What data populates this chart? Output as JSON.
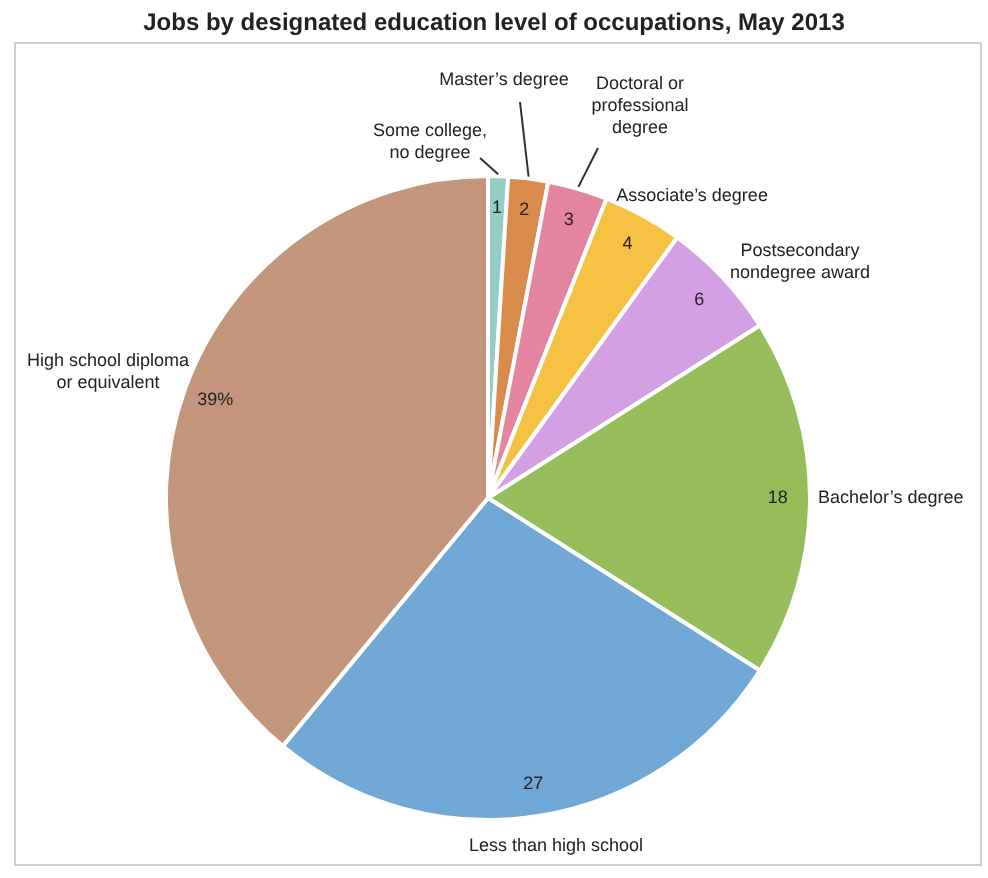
{
  "chart_data": {
    "type": "pie",
    "title": "Jobs by designated education level of occupations, May 2013",
    "categories": [
      "Some college, no degree",
      "Master’s degree",
      "Doctoral or professional degree",
      "Associate’s degree",
      "Postsecondary nondegree award",
      "Bachelor’s degree",
      "Less than high school",
      "High school diploma or equivalent"
    ],
    "values": [
      1,
      2,
      3,
      4,
      6,
      18,
      27,
      39
    ],
    "colors": [
      "#93cdc6",
      "#d98b4b",
      "#e384a0",
      "#f6c244",
      "#d59fe3",
      "#97bd5b",
      "#6fa8d4",
      "#c3967b"
    ],
    "value_labels": [
      "1",
      "2",
      "3",
      "4",
      "6",
      "18",
      "27",
      "39%"
    ]
  }
}
